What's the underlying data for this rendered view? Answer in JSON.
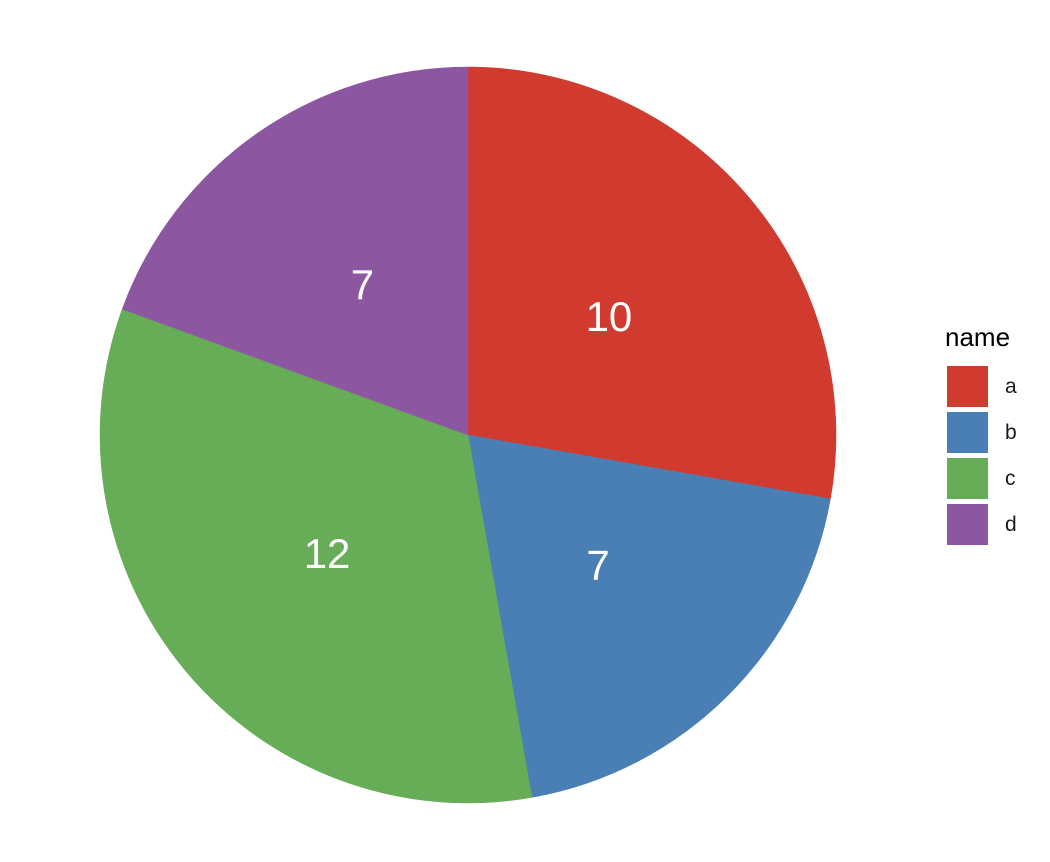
{
  "chart_data": {
    "type": "pie",
    "categories": [
      "a",
      "b",
      "c",
      "d"
    ],
    "values": [
      10,
      7,
      12,
      7
    ],
    "colors": [
      "#d13a2f",
      "#497fb5",
      "#67ac57",
      "#8c57a0"
    ],
    "direction": "clockwise",
    "start_angle": "12 o'clock",
    "slice_labels_shown": true,
    "legend": {
      "title": "name",
      "placement": "right",
      "entries": [
        "a",
        "b",
        "c",
        "d"
      ]
    },
    "title": "",
    "xlabel": "",
    "ylabel": ""
  }
}
